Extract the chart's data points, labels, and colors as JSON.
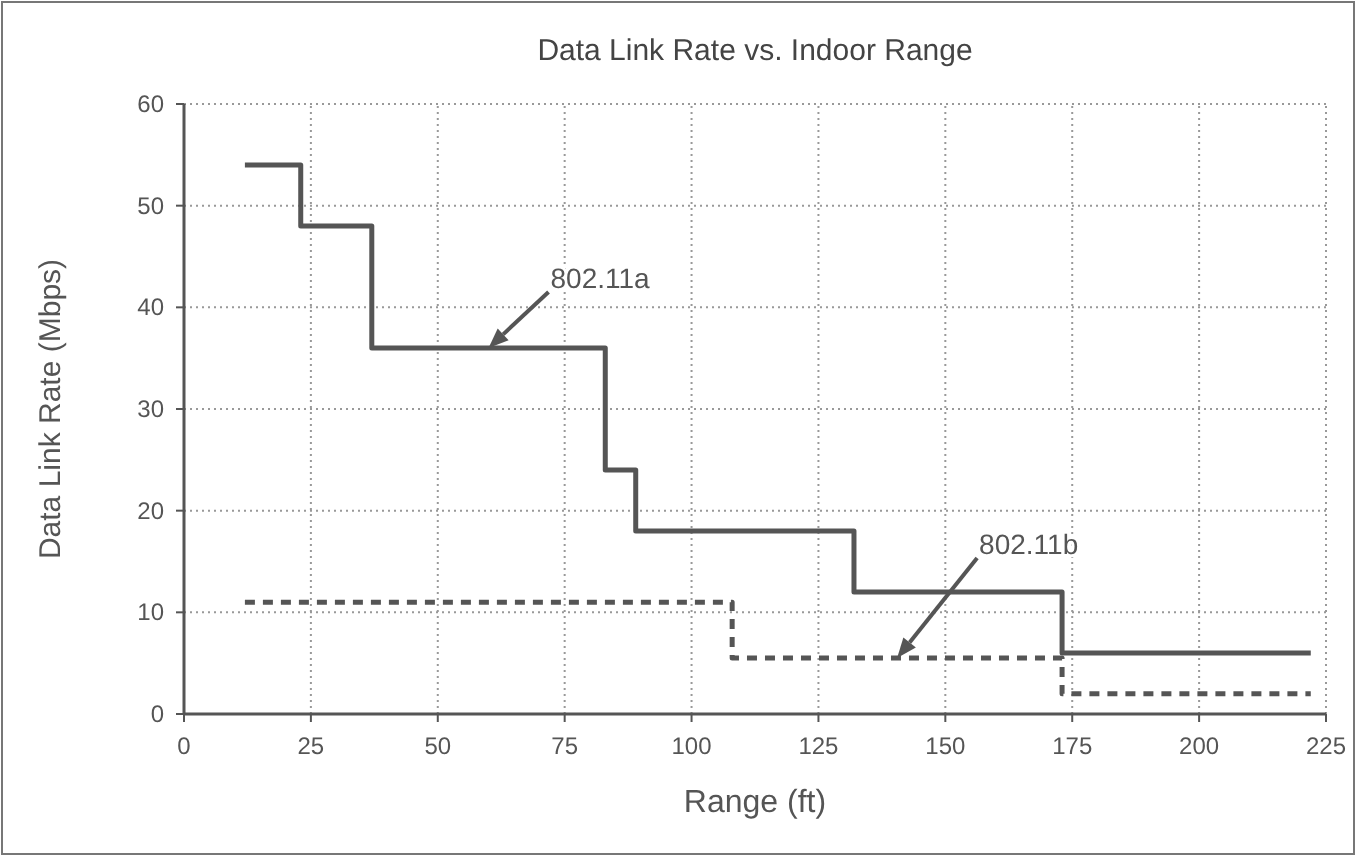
{
  "chart_data": {
    "type": "step",
    "title": "Data Link Rate vs. Indoor Range",
    "xlabel": "Range (ft)",
    "ylabel": "Data Link Rate (Mbps)",
    "xlim": [
      0,
      225
    ],
    "xticks": [
      0,
      25,
      50,
      75,
      100,
      125,
      150,
      175,
      200,
      225
    ],
    "ylim": [
      0,
      60
    ],
    "yticks": [
      0,
      10,
      20,
      30,
      40,
      50,
      60
    ],
    "grid": true,
    "series": [
      {
        "name": "802.11a",
        "color": "#555555",
        "line_style": "solid",
        "x": [
          12,
          23,
          37,
          83,
          89,
          132,
          173,
          222
        ],
        "values": [
          54,
          48,
          36,
          24,
          18,
          12,
          6,
          6
        ]
      },
      {
        "name": "802.11b",
        "color": "#555555",
        "line_style": "dashed",
        "x": [
          12,
          108,
          173,
          222
        ],
        "values": [
          11,
          5.5,
          2,
          2
        ]
      }
    ]
  }
}
